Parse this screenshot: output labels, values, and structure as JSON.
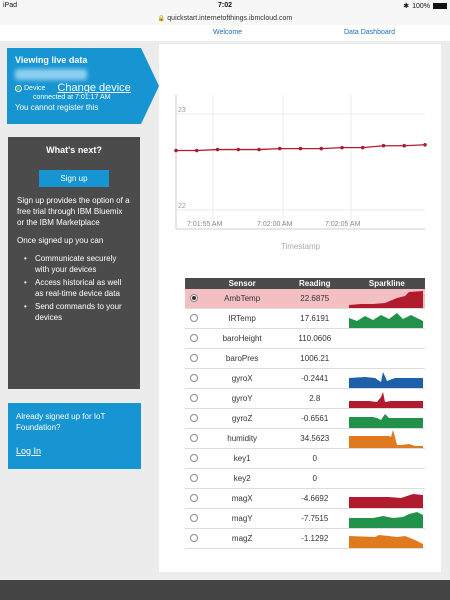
{
  "statusbar": {
    "device": "iPad",
    "time": "7:02",
    "battery": "100%"
  },
  "url": "quickstart.internetofthings.ibmcloud.com",
  "nav": {
    "welcome": "Welcome",
    "dashboard": "Data Dashboard"
  },
  "live": {
    "title": "Viewing live data",
    "device_label": "Device",
    "change_device": "Change device",
    "connected": "connected at 7:01:17 AM",
    "no_register": "You cannot register this"
  },
  "next": {
    "title": "What's next?",
    "signup_label": "Sign up",
    "text1": "Sign up provides the option of a free trial through IBM Bluemix or the IBM Marketplace",
    "text2": "Once signed up you can",
    "items": [
      "Communicate securely with your devices",
      "Access historical as well as real-time device data",
      "Send commands to your devices"
    ]
  },
  "already": {
    "text": "Already signed up for IoT Foundation?",
    "login": "Log In"
  },
  "colors": {
    "accent": "#1795d2",
    "panel_dark": "#4b4b4b",
    "line": "#b01c2e",
    "selected_row": "#f3bfc2"
  },
  "chart_data": {
    "type": "line",
    "x": [
      "7:01:50 AM",
      "7:01:52 AM",
      "7:01:54 AM",
      "7:01:56 AM",
      "7:01:58 AM",
      "7:02:00 AM",
      "7:02:02 AM",
      "7:02:04 AM",
      "7:02:06 AM",
      "7:02:08 AM",
      "7:02:10 AM",
      "7:02:12 AM",
      "7:02:14 AM"
    ],
    "series": [
      {
        "values": [
          22.62,
          22.62,
          22.63,
          22.63,
          22.63,
          22.64,
          22.64,
          22.64,
          22.65,
          22.65,
          22.67,
          22.67,
          22.68
        ]
      }
    ],
    "yticks": [
      "23",
      "22"
    ],
    "xticks": [
      "7:01:55 AM",
      "7:02:00 AM",
      "7:02:05 AM"
    ],
    "xlabel": "Timestamp",
    "ylim": [
      21.8,
      23.2
    ],
    "grid": true
  },
  "table": {
    "headers": [
      "Sensor",
      "Reading",
      "Sparkline"
    ],
    "rows": [
      {
        "sensor": "AmbTemp",
        "reading": "22.6875",
        "selected": true,
        "spark": "ambtemp",
        "color": "#b01c2e"
      },
      {
        "sensor": "IRTemp",
        "reading": "17.6191",
        "selected": false,
        "spark": "irtemp",
        "color": "#22924a"
      },
      {
        "sensor": "baroHeight",
        "reading": "110.0606",
        "selected": false,
        "spark": "none",
        "color": ""
      },
      {
        "sensor": "baroPres",
        "reading": "1006.21",
        "selected": false,
        "spark": "none",
        "color": ""
      },
      {
        "sensor": "gyroX",
        "reading": "-0.2441",
        "selected": false,
        "spark": "gyrox",
        "color": "#1d5fa8"
      },
      {
        "sensor": "gyroY",
        "reading": "2.8",
        "selected": false,
        "spark": "gyroy",
        "color": "#b01c2e"
      },
      {
        "sensor": "gyroZ",
        "reading": "-0.6561",
        "selected": false,
        "spark": "gyroz",
        "color": "#22924a"
      },
      {
        "sensor": "humidity",
        "reading": "34.5623",
        "selected": false,
        "spark": "humidity",
        "color": "#e07a1f"
      },
      {
        "sensor": "key1",
        "reading": "0",
        "selected": false,
        "spark": "none",
        "color": ""
      },
      {
        "sensor": "key2",
        "reading": "0",
        "selected": false,
        "spark": "none",
        "color": ""
      },
      {
        "sensor": "magX",
        "reading": "-4.6692",
        "selected": false,
        "spark": "magx",
        "color": "#b01c2e"
      },
      {
        "sensor": "magY",
        "reading": "-7.7515",
        "selected": false,
        "spark": "magy",
        "color": "#22924a"
      },
      {
        "sensor": "magZ",
        "reading": "-1.1292",
        "selected": false,
        "spark": "magz",
        "color": "#e07a1f"
      }
    ]
  }
}
